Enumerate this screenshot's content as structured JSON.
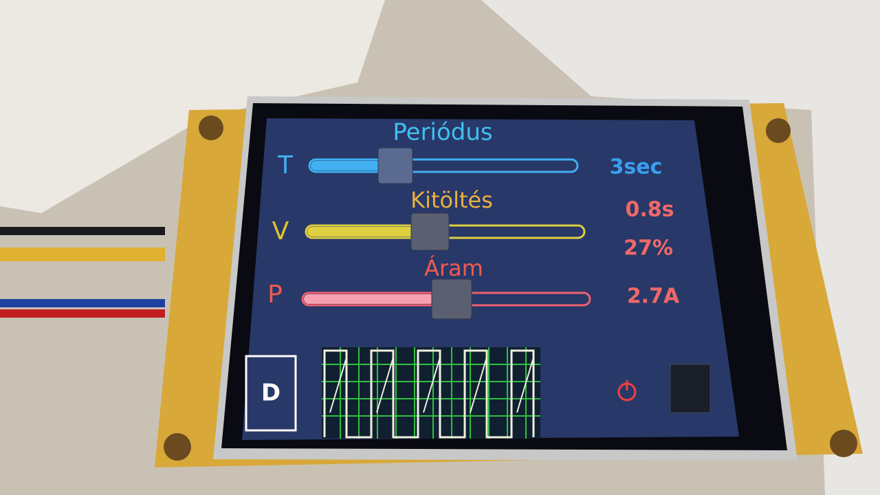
{
  "screen": {
    "sliders": [
      {
        "title": "Periódus",
        "letter": "T",
        "readouts": [
          "3sec"
        ]
      },
      {
        "title": "Kitöltés",
        "letter": "V",
        "readouts": [
          "0.8s",
          "27%"
        ]
      },
      {
        "title": "Áram",
        "letter": "P",
        "readouts": [
          "2.7A"
        ]
      }
    ],
    "button": "D"
  }
}
